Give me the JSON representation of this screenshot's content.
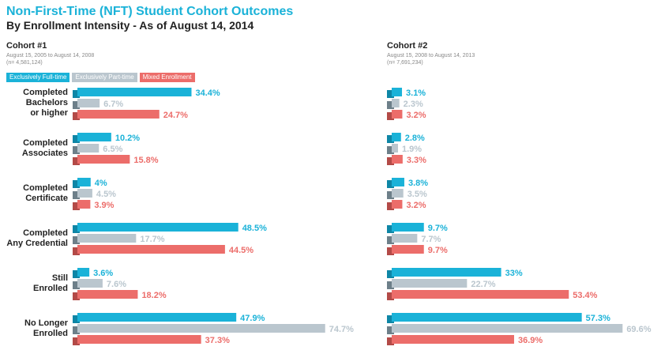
{
  "header": {
    "title": "Non-First-Time (NFT) Student Cohort Outcomes",
    "subtitle": "By Enrollment Intensity - As of August 14, 2014"
  },
  "cohorts": [
    {
      "title": "Cohort #1",
      "range": "August 15, 2005 to August 14, 2008",
      "n": "(n= 4,581,124)"
    },
    {
      "title": "Cohort #2",
      "range": "August 15, 2008 to August 14, 2013",
      "n": "(n= 7,691,234)"
    }
  ],
  "legend": [
    "Exclusively Full-time",
    "Exclusively Part-time",
    "Mixed Enrollment"
  ],
  "colors": {
    "full": "#1ab2d8",
    "part": "#bac6ce",
    "mixed": "#ec6d6a",
    "full_dark": "#0e86a6",
    "part_dark": "#6d7f89",
    "mixed_dark": "#b34a47"
  },
  "categories": [
    "Completed Bachelors or higher",
    "Completed Associates",
    "Completed Certificate",
    "Completed Any Credential",
    "Still Enrolled",
    "No Longer Enrolled"
  ],
  "category_lines": [
    [
      "Completed",
      "Bachelors",
      "or higher"
    ],
    [
      "Completed",
      "Associates"
    ],
    [
      "Completed",
      "Certificate"
    ],
    [
      "Completed",
      "Any Credential"
    ],
    [
      "Still",
      "Enrolled"
    ],
    [
      "No Longer",
      "Enrolled"
    ]
  ],
  "chart_data": [
    {
      "type": "bar",
      "title": "Cohort #1",
      "categories": [
        "Completed Bachelors or higher",
        "Completed Associates",
        "Completed Certificate",
        "Completed Any Credential",
        "Still Enrolled",
        "No Longer Enrolled"
      ],
      "series": [
        {
          "name": "Exclusively Full-time",
          "values": [
            34.4,
            10.2,
            4,
            48.5,
            3.6,
            47.9
          ],
          "labels": [
            "34.4%",
            "10.2%",
            "4%",
            "48.5%",
            "3.6%",
            "47.9%"
          ]
        },
        {
          "name": "Exclusively Part-time",
          "values": [
            6.7,
            6.5,
            4.5,
            17.7,
            7.6,
            74.7
          ],
          "labels": [
            "6.7%",
            "6.5%",
            "4.5%",
            "17.7%",
            "7.6%",
            "74.7%"
          ]
        },
        {
          "name": "Mixed Enrollment",
          "values": [
            24.7,
            15.8,
            3.9,
            44.5,
            18.2,
            37.3
          ],
          "labels": [
            "24.7%",
            "15.8%",
            "3.9%",
            "44.5%",
            "18.2%",
            "37.3%"
          ]
        }
      ]
    },
    {
      "type": "bar",
      "title": "Cohort #2",
      "categories": [
        "Completed Bachelors or higher",
        "Completed Associates",
        "Completed Certificate",
        "Completed Any Credential",
        "Still Enrolled",
        "No Longer Enrolled"
      ],
      "series": [
        {
          "name": "Exclusively Full-time",
          "values": [
            3.1,
            2.8,
            3.8,
            9.7,
            33,
            57.3
          ],
          "labels": [
            "3.1%",
            "2.8%",
            "3.8%",
            "9.7%",
            "33%",
            "57.3%"
          ]
        },
        {
          "name": "Exclusively Part-time",
          "values": [
            2.3,
            1.9,
            3.5,
            7.7,
            22.7,
            69.6
          ],
          "labels": [
            "2.3%",
            "1.9%",
            "3.5%",
            "7.7%",
            "22.7%",
            "69.6%"
          ]
        },
        {
          "name": "Mixed Enrollment",
          "values": [
            3.2,
            3.3,
            3.2,
            9.7,
            53.4,
            36.9
          ],
          "labels": [
            "3.2%",
            "3.3%",
            "3.2%",
            "9.7%",
            "53.4%",
            "36.9%"
          ]
        }
      ]
    }
  ]
}
